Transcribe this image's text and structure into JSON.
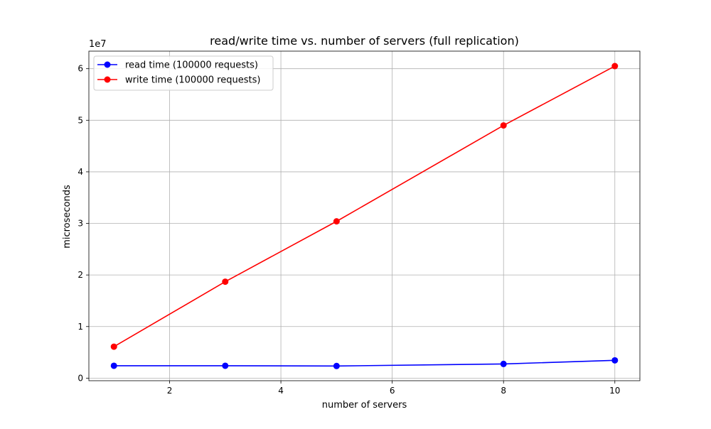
{
  "chart_data": {
    "type": "line",
    "title": "read/write time vs. number of servers (full replication)",
    "xlabel": "number of servers",
    "ylabel": "microseconds",
    "y_offset_label": "1e7",
    "x": [
      1,
      3,
      5,
      8,
      10
    ],
    "xlim": [
      0.55,
      10.45
    ],
    "ylim": [
      -500000.0,
      63400000.0
    ],
    "xticks": [
      2,
      4,
      6,
      8,
      10
    ],
    "xtick_labels": [
      "2",
      "4",
      "6",
      "8",
      "10"
    ],
    "yticks": [
      0,
      10000000,
      20000000,
      30000000,
      40000000,
      50000000,
      60000000
    ],
    "ytick_labels": [
      "0",
      "1",
      "2",
      "3",
      "4",
      "5",
      "6"
    ],
    "grid": true,
    "legend_position": "upper-left",
    "series": [
      {
        "name": "read time (100000 requests)",
        "color": "#0000ff",
        "values": [
          2400000,
          2400000,
          2350000,
          2750000,
          3450000
        ]
      },
      {
        "name": "write time (100000 requests)",
        "color": "#ff0000",
        "values": [
          6100000,
          18700000,
          30400000,
          49000000,
          60500000
        ]
      }
    ]
  }
}
